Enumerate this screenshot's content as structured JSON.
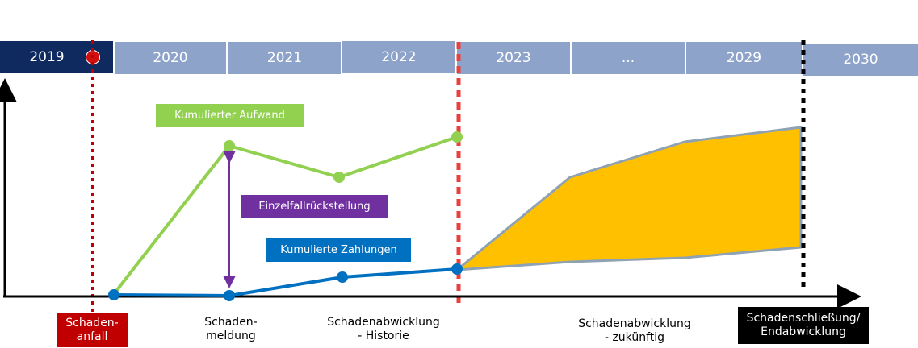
{
  "timeline": {
    "years": [
      {
        "label": "2019",
        "active": true
      },
      {
        "label": "2020",
        "active": false
      },
      {
        "label": "2021",
        "active": false
      },
      {
        "label": "2022",
        "active": false
      },
      {
        "label": "2023",
        "active": false
      },
      {
        "label": "...",
        "active": false
      },
      {
        "label": "2029",
        "active": false
      },
      {
        "label": "2030",
        "active": false
      }
    ]
  },
  "labels": {
    "kumulierter_aufwand": "Kumulierter Aufwand",
    "einzelfallrueckstellung": "Einzelfallrückstellung",
    "kumulierte_zahlungen": "Kumulierte Zahlungen"
  },
  "stages": {
    "schadenanfall": "Schaden-\nanfall",
    "schadenmeldung": "Schaden-\nmeldung",
    "historie": "Schadenabwicklung\n- Historie",
    "zukuenftig": "Schadenabwicklung\n- zukünftig",
    "endabwicklung": "Schadenschließung/\nEndabwicklung"
  },
  "colors": {
    "navy": "#0f2a5f",
    "year_inactive": "#8ea3c9",
    "green": "#92d050",
    "blue": "#0070c0",
    "purple": "#7030a0",
    "red": "#c00000",
    "orange_fill": "#ffc000",
    "grey_outline": "#8fa2b4",
    "black": "#000000"
  }
}
